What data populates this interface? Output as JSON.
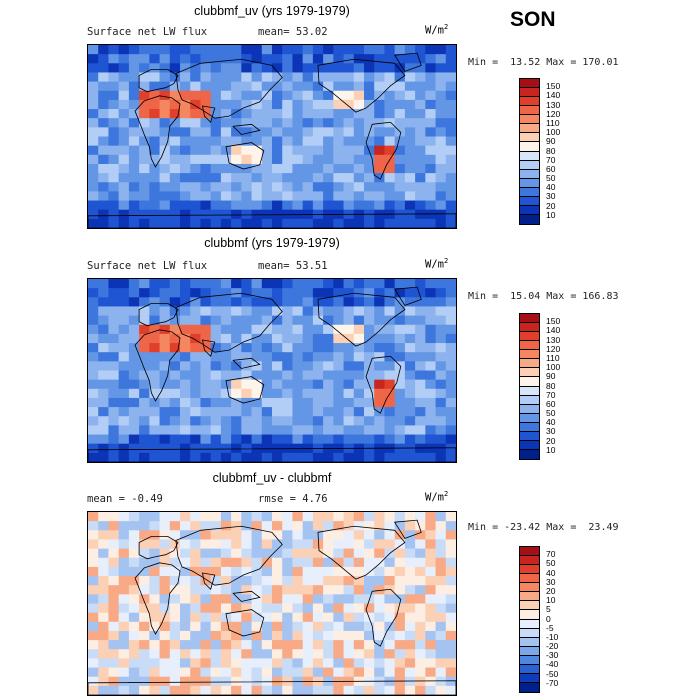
{
  "season": "SON",
  "panels": [
    {
      "title": "clubbmf_uv (yrs 1979-1979)",
      "var_label": "Surface net LW flux",
      "stat": "mean=  53.02",
      "units": "W/m",
      "units_exp": "2",
      "minmax": "Min =  13.52 Max = 170.01",
      "colorbar_labels": [
        "150",
        "140",
        "130",
        "120",
        "110",
        "100",
        "90",
        "80",
        "70",
        "60",
        "50",
        "40",
        "30",
        "20",
        "10"
      ],
      "colorbar_colors": [
        "#a50f15",
        "#c7251e",
        "#e03f2b",
        "#ef6548",
        "#f4875f",
        "#f8a986",
        "#fcd0b4",
        "#fff4ea",
        "#d7e6fb",
        "#b2cdf6",
        "#8db3ef",
        "#6496e6",
        "#3d76dc",
        "#1f55d2",
        "#0b34b6",
        "#00208c"
      ],
      "field_type": "abs"
    },
    {
      "title": "clubbmf (yrs 1979-1979)",
      "var_label": "Surface net LW flux",
      "stat": "mean=  53.51",
      "units": "W/m",
      "units_exp": "2",
      "minmax": "Min =  15.04 Max = 166.83",
      "colorbar_labels": [
        "150",
        "140",
        "130",
        "120",
        "110",
        "100",
        "90",
        "80",
        "70",
        "60",
        "50",
        "40",
        "30",
        "20",
        "10"
      ],
      "colorbar_colors": [
        "#a50f15",
        "#c7251e",
        "#e03f2b",
        "#ef6548",
        "#f4875f",
        "#f8a986",
        "#fcd0b4",
        "#fff4ea",
        "#d7e6fb",
        "#b2cdf6",
        "#8db3ef",
        "#6496e6",
        "#3d76dc",
        "#1f55d2",
        "#0b34b6",
        "#00208c"
      ],
      "field_type": "abs"
    },
    {
      "title": "clubbmf_uv - clubbmf",
      "var_label": "mean =  -0.49",
      "stat": "rmse =   4.76",
      "units": "W/m",
      "units_exp": "2",
      "minmax": "Min = -23.42 Max =  23.49",
      "colorbar_labels": [
        "70",
        "50",
        "40",
        "30",
        "20",
        "10",
        "5",
        "0",
        "-5",
        "-10",
        "-20",
        "-30",
        "-40",
        "-50",
        "-70"
      ],
      "colorbar_colors": [
        "#a50f15",
        "#c7251e",
        "#e03f2b",
        "#ef6548",
        "#f4875f",
        "#f8a986",
        "#fcd0b4",
        "#fdeee4",
        "#e6effb",
        "#c9dcf7",
        "#a4c3f1",
        "#7aa6ea",
        "#4f86e0",
        "#2a62d3",
        "#0f3cb8",
        "#00208c"
      ],
      "field_type": "diff"
    }
  ]
}
